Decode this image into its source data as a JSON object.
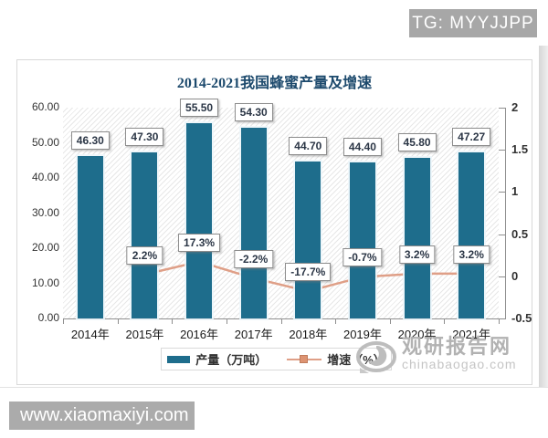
{
  "overlays": {
    "tg_badge": "TG: MYYJJPP",
    "bottom_watermark": "www.xiaomaxiyi.com",
    "site_watermark": {
      "name": "观研报告网",
      "domain": "chinabaogao.com"
    }
  },
  "chart_data": {
    "type": "bar+line",
    "title": "2014-2021我国蜂蜜产量及增速",
    "categories": [
      "2014年",
      "2015年",
      "2016年",
      "2017年",
      "2018年",
      "2019年",
      "2020年",
      "2021年"
    ],
    "series": [
      {
        "name": "产量（万吨）",
        "type": "bar",
        "axis": "left",
        "color": "#1e6d8c",
        "values": [
          46.3,
          47.3,
          55.5,
          54.3,
          44.7,
          44.4,
          45.8,
          47.27
        ],
        "labels": [
          "46.30",
          "47.30",
          "55.50",
          "54.30",
          "44.70",
          "44.40",
          "45.80",
          "47.27"
        ]
      },
      {
        "name": "增速（%）",
        "type": "line",
        "axis": "right",
        "color": "#dd9372",
        "values": [
          null,
          2.2,
          17.3,
          -2.2,
          -17.7,
          -0.7,
          3.2,
          3.2
        ],
        "labels": [
          null,
          "2.2%",
          "17.3%",
          "-2.2%",
          "-17.7%",
          "-0.7%",
          "3.2%",
          "3.2%"
        ]
      }
    ],
    "left_axis": {
      "min": 0,
      "max": 60,
      "ticks": [
        "60.00",
        "50.00",
        "40.00",
        "30.00",
        "20.00",
        "10.00",
        "0.00"
      ]
    },
    "right_axis": {
      "min": -0.5,
      "max": 2,
      "scale_of_percent": 0.01,
      "ticks": [
        "2",
        "1.5",
        "1",
        "0.5",
        "0",
        "-0.5"
      ]
    },
    "legend_position": "bottom",
    "grid": "hatched-background"
  }
}
